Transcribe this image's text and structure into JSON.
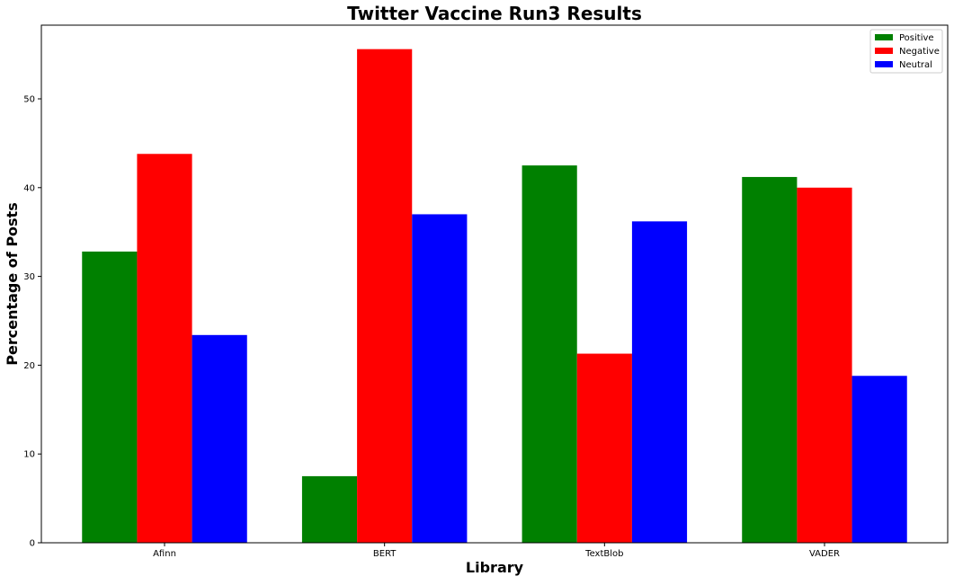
{
  "chart_data": {
    "type": "bar",
    "title": "Twitter Vaccine Run3 Results",
    "xlabel": "Library",
    "ylabel": "Percentage of Posts",
    "categories": [
      "Afinn",
      "BERT",
      "TextBlob",
      "VADER"
    ],
    "series": [
      {
        "name": "Positive",
        "color": "#008000",
        "values": [
          32.8,
          7.5,
          42.5,
          41.2
        ]
      },
      {
        "name": "Negative",
        "color": "#ff0000",
        "values": [
          43.8,
          55.6,
          21.3,
          40.0
        ]
      },
      {
        "name": "Neutral",
        "color": "#0000ff",
        "values": [
          23.4,
          37.0,
          36.2,
          18.8
        ]
      }
    ],
    "ylim": [
      0,
      58.3
    ],
    "yticks": [
      "0",
      "10",
      "20",
      "30",
      "40",
      "50"
    ],
    "grid": false,
    "legend_position": "top-right"
  }
}
